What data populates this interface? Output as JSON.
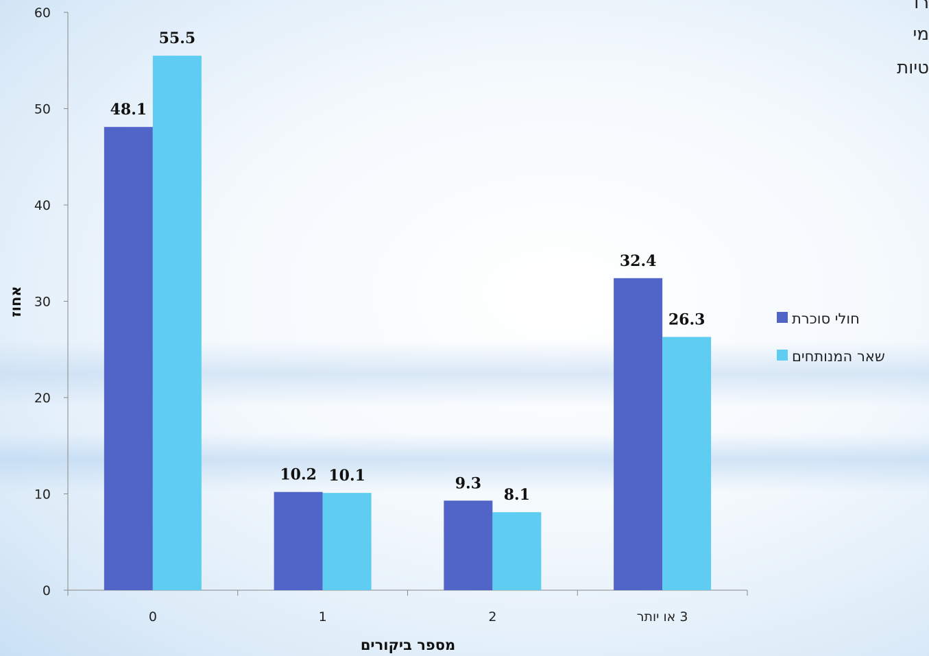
{
  "chart_data": {
    "type": "bar",
    "categories": [
      "0",
      "1",
      "2",
      "3 או יותר"
    ],
    "series": [
      {
        "name": "חולי סוכרת",
        "values": [
          48.1,
          10.2,
          9.3,
          32.4
        ],
        "color": "#5065C7"
      },
      {
        "name": "שאר המנותחים",
        "values": [
          55.5,
          10.1,
          8.1,
          26.3
        ],
        "color": "#5FCDF2"
      }
    ],
    "value_labels": [
      "48.1",
      "10.2",
      "9.3",
      "32.4",
      "55.5",
      "10.1",
      "8.1",
      "26.3"
    ],
    "xlabel": "מספר ביקורים",
    "ylabel": "אחוז",
    "ylim": [
      0,
      60
    ],
    "yticks": [
      "0",
      "10",
      "20",
      "30",
      "40",
      "50",
      "60"
    ],
    "grid": false,
    "legend_position": "right"
  },
  "corner_text": [
    "רו",
    "מי",
    "טיות"
  ]
}
